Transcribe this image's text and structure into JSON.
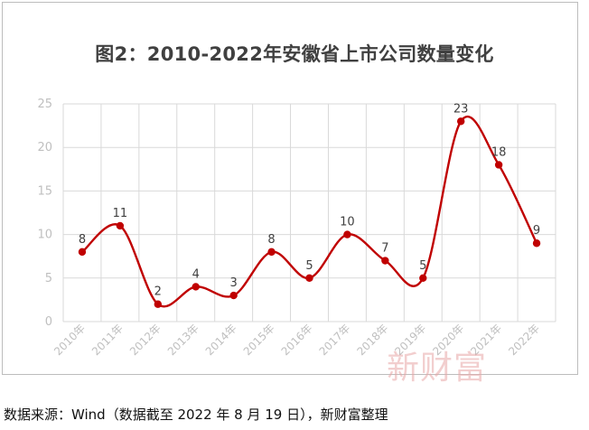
{
  "title": "图2：2010-2022年安徽省上市公司数量变化",
  "source": "数据来源：Wind（数据截至 2022 年 8 月 19 日），新财富整理",
  "watermark": "新财富",
  "chart_data": {
    "type": "line",
    "title": "图2：2010-2022年安徽省上市公司数量变化",
    "categories": [
      "2010年",
      "2011年",
      "2012年",
      "2013年",
      "2014年",
      "2015年",
      "2016年",
      "2017年",
      "2018年",
      "2019年",
      "2020年",
      "2021年",
      "2022年"
    ],
    "values": [
      8,
      11,
      2,
      4,
      3,
      8,
      5,
      10,
      7,
      5,
      23,
      18,
      9
    ],
    "yticks": [
      0,
      5,
      10,
      15,
      20,
      25
    ],
    "ylim": [
      0,
      25
    ],
    "xlabel": "",
    "ylabel": "",
    "grid": true,
    "smooth": true,
    "line_color": "#c00000",
    "marker_color": "#c00000",
    "grid_color": "#d9d9d9",
    "tick_label_color": "#bfbfbf",
    "data_label_color": "#404040"
  }
}
